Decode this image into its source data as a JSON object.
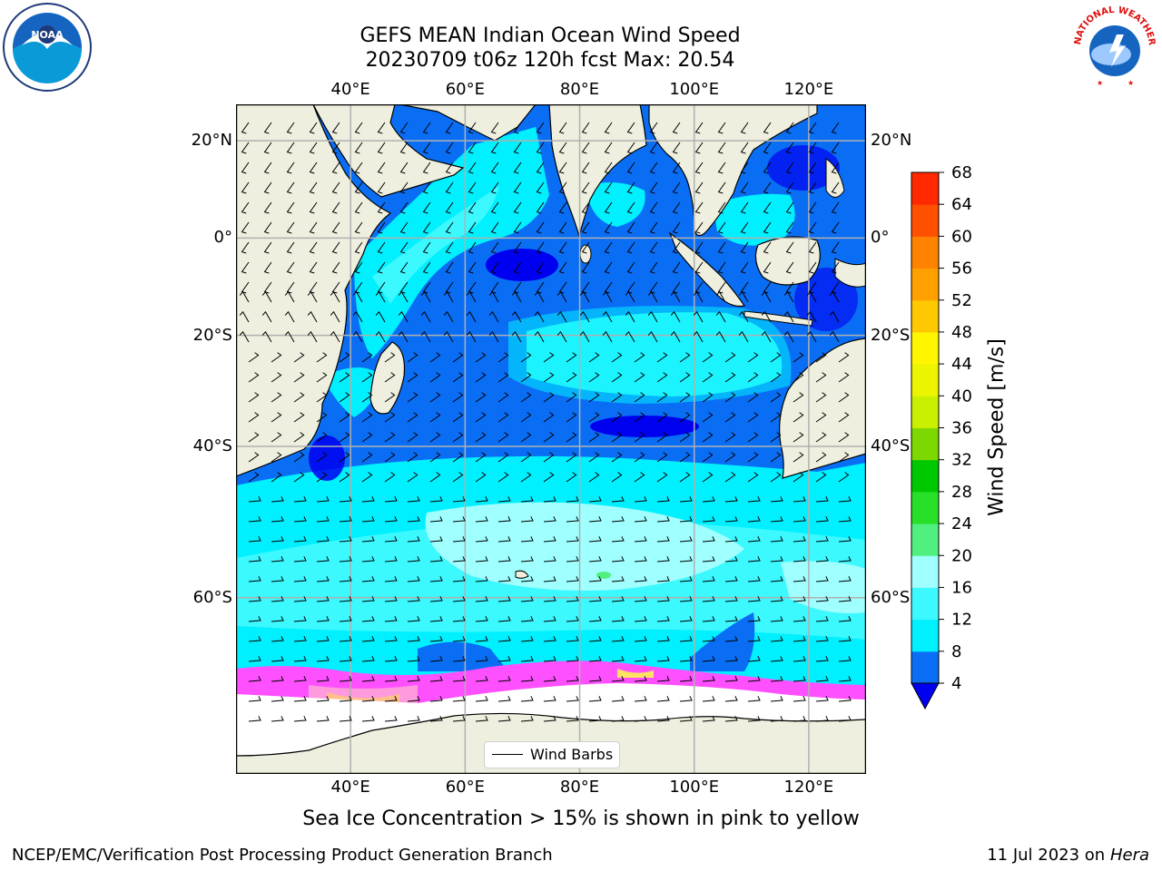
{
  "title": {
    "line1": "GEFS MEAN Indian Ocean Wind Speed",
    "line2": "20230709 t06z 120h fcst   Max: 20.54"
  },
  "logos": {
    "left": {
      "name": "NOAA",
      "ring_text": "NATIONAL OCEANIC AND ATMOSPHERIC ADMINISTRATION · U.S. DEPARTMENT OF COMMERCE"
    },
    "right": {
      "ring_text": "NATIONAL WEATHER SERVICE"
    }
  },
  "map": {
    "region": "Indian Ocean",
    "extent": {
      "lon": [
        20,
        130
      ],
      "lat": [
        -74,
        27
      ]
    },
    "lon_ticks": [
      "40°E",
      "60°E",
      "80°E",
      "100°E",
      "120°E"
    ],
    "lon_values": [
      40,
      60,
      80,
      100,
      120
    ],
    "lat_ticks": [
      "20°N",
      "0°",
      "20°S",
      "40°S",
      "60°S"
    ],
    "lat_values": [
      20,
      0,
      -20,
      -40,
      -60
    ],
    "grid": true,
    "legend": {
      "label": "Wind Barbs",
      "placement": "lower-center"
    }
  },
  "chart_data": {
    "type": "heatmap",
    "title": "GEFS MEAN Indian Ocean Wind Speed",
    "subtitle": "20230709 t06z 120h fcst   Max: 20.54",
    "max_value": 20.54,
    "colorbar": {
      "label": "Wind Speed [m/s]",
      "ticks": [
        4,
        8,
        12,
        16,
        20,
        24,
        28,
        32,
        36,
        40,
        44,
        48,
        52,
        56,
        60,
        64,
        68
      ],
      "bounds": [
        4,
        8,
        12,
        16,
        20,
        24,
        28,
        32,
        36,
        40,
        44,
        48,
        52,
        56,
        60,
        64,
        68
      ],
      "colors": [
        "#0a6ef5",
        "#00f0ff",
        "#3cf8ff",
        "#a0ffff",
        "#50f080",
        "#28e028",
        "#00c800",
        "#7cd800",
        "#c8f000",
        "#ecf400",
        "#fff600",
        "#ffc800",
        "#ffa000",
        "#ff8200",
        "#ff5000",
        "#ff2800"
      ],
      "under_color": "#0000f0",
      "extend": "min"
    },
    "sea_ice_colors": [
      "#ff50ff",
      "#ff9bdc",
      "#ffc08c",
      "#ffe164"
    ]
  },
  "caption": "Sea Ice Concentration > 15% is shown in pink to yellow",
  "footer": {
    "left": "NCEP/EMC/Verification Post Processing Product Generation Branch",
    "right_prefix": "11 Jul 2023 on ",
    "right_machine": "Hera"
  }
}
